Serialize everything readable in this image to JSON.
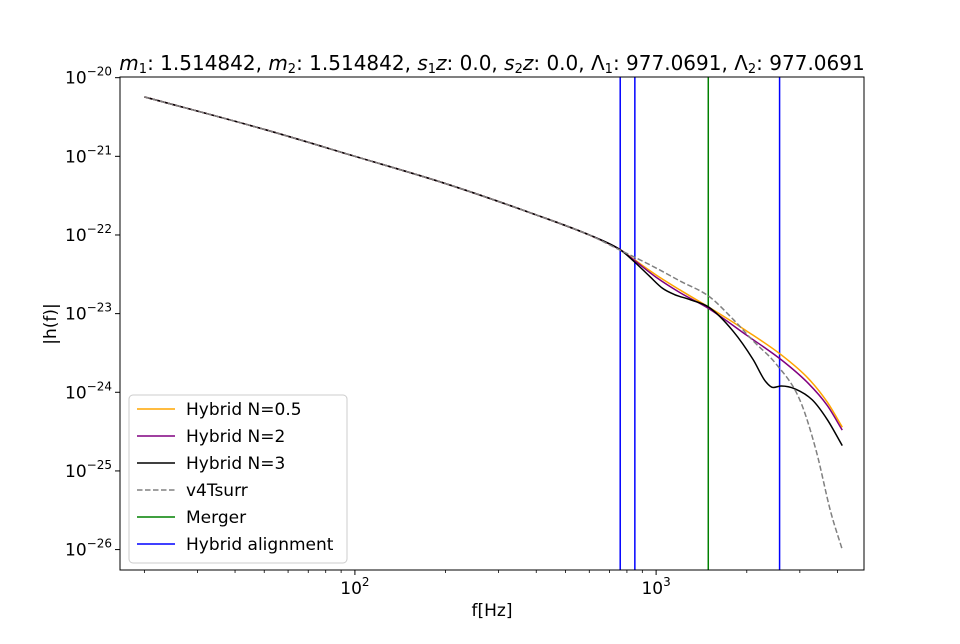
{
  "chart_data": {
    "type": "line",
    "title": "m1: 1.514842, m2: 1.514842, s1z: 0.0, s2z: 0.0, Λ1: 977.0691, Λ2: 977.0691",
    "title_parts": [
      {
        "t": "m",
        "style": "italic"
      },
      {
        "t": "1",
        "style": "sub"
      },
      {
        "t": ": 1.514842, "
      },
      {
        "t": "m",
        "style": "italic"
      },
      {
        "t": "2",
        "style": "sub"
      },
      {
        "t": ": 1.514842, "
      },
      {
        "t": "s",
        "style": "italic"
      },
      {
        "t": "1",
        "style": "sub"
      },
      {
        "t": "z",
        "style": "italic"
      },
      {
        "t": ": 0.0, "
      },
      {
        "t": "s",
        "style": "italic"
      },
      {
        "t": "2",
        "style": "sub"
      },
      {
        "t": "z",
        "style": "italic"
      },
      {
        "t": ": 0.0, "
      },
      {
        "t": "Λ"
      },
      {
        "t": "1",
        "style": "sub"
      },
      {
        "t": ": 977.0691, "
      },
      {
        "t": "Λ"
      },
      {
        "t": "2",
        "style": "sub"
      },
      {
        "t": ": 977.0691"
      }
    ],
    "xlabel": "f[Hz]",
    "ylabel": "|h(f)|",
    "xscale": "log",
    "yscale": "log",
    "xlim": [
      16.6,
      4900
    ],
    "ylim": [
      5.5e-27,
      1.02e-20
    ],
    "x_major_ticks": [
      {
        "value": 100,
        "mantissa": "10",
        "exp": "2"
      },
      {
        "value": 1000,
        "mantissa": "10",
        "exp": "3"
      }
    ],
    "y_major_ticks": [
      {
        "value": 1e-26,
        "mantissa": "10",
        "exp": "−26"
      },
      {
        "value": 1e-25,
        "mantissa": "10",
        "exp": "−25"
      },
      {
        "value": 1e-24,
        "mantissa": "10",
        "exp": "−24"
      },
      {
        "value": 1e-23,
        "mantissa": "10",
        "exp": "−23"
      },
      {
        "value": 1e-22,
        "mantissa": "10",
        "exp": "−22"
      },
      {
        "value": 1e-21,
        "mantissa": "10",
        "exp": "−21"
      },
      {
        "value": 1e-20,
        "mantissa": "10",
        "exp": "−20"
      }
    ],
    "grid": false,
    "legend_position": "lower-left",
    "series": [
      {
        "name": "Hybrid N=0.5",
        "color": "#ffa500",
        "dash": "solid",
        "points": [
          [
            20,
            5.7e-21
          ],
          [
            50,
            2.2e-21
          ],
          [
            100,
            1e-21
          ],
          [
            200,
            4.5e-22
          ],
          [
            400,
            1.8e-22
          ],
          [
            600,
            1e-22
          ],
          [
            760,
            6.5e-23
          ],
          [
            850,
            4.8e-23
          ],
          [
            1000,
            3.1e-23
          ],
          [
            1200,
            2e-23
          ],
          [
            1500,
            1.2e-23
          ],
          [
            2000,
            6e-24
          ],
          [
            2600,
            3e-24
          ],
          [
            3200,
            1.5e-24
          ],
          [
            3700,
            7.5e-25
          ],
          [
            4150,
            3.6e-25
          ]
        ]
      },
      {
        "name": "Hybrid N=2",
        "color": "#800080",
        "dash": "solid",
        "points": [
          [
            20,
            5.7e-21
          ],
          [
            50,
            2.2e-21
          ],
          [
            100,
            1e-21
          ],
          [
            200,
            4.5e-22
          ],
          [
            400,
            1.8e-22
          ],
          [
            600,
            1e-22
          ],
          [
            760,
            6.5e-23
          ],
          [
            850,
            4.7e-23
          ],
          [
            1000,
            2.9e-23
          ],
          [
            1200,
            1.85e-23
          ],
          [
            1500,
            1.15e-23
          ],
          [
            2000,
            5.3e-24
          ],
          [
            2600,
            2.6e-24
          ],
          [
            3200,
            1.3e-24
          ],
          [
            3700,
            6.8e-25
          ],
          [
            4150,
            3.3e-25
          ]
        ]
      },
      {
        "name": "Hybrid N=3",
        "color": "#000000",
        "dash": "solid",
        "points": [
          [
            20,
            5.7e-21
          ],
          [
            50,
            2.2e-21
          ],
          [
            100,
            1e-21
          ],
          [
            200,
            4.5e-22
          ],
          [
            400,
            1.8e-22
          ],
          [
            600,
            1e-22
          ],
          [
            760,
            6.5e-23
          ],
          [
            850,
            4.5e-23
          ],
          [
            950,
            3e-23
          ],
          [
            1050,
            2.1e-23
          ],
          [
            1150,
            1.75e-23
          ],
          [
            1300,
            1.5e-23
          ],
          [
            1500,
            1.2e-23
          ],
          [
            1800,
            6e-24
          ],
          [
            2100,
            2.6e-24
          ],
          [
            2300,
            1.4e-24
          ],
          [
            2450,
            1.15e-24
          ],
          [
            2600,
            1.2e-24
          ],
          [
            2900,
            1.1e-24
          ],
          [
            3300,
            8e-25
          ],
          [
            3700,
            4.5e-25
          ],
          [
            4150,
            2.1e-25
          ]
        ]
      },
      {
        "name": "v4Tsurr",
        "color": "#808080",
        "dash": "dashed",
        "points": [
          [
            20,
            5.7e-21
          ],
          [
            50,
            2.2e-21
          ],
          [
            100,
            1e-21
          ],
          [
            200,
            4.5e-22
          ],
          [
            400,
            1.8e-22
          ],
          [
            600,
            1e-22
          ],
          [
            760,
            6.4e-23
          ],
          [
            850,
            5.2e-23
          ],
          [
            1000,
            3.8e-23
          ],
          [
            1200,
            2.6e-23
          ],
          [
            1500,
            1.65e-23
          ],
          [
            1800,
            8.5e-24
          ],
          [
            2100,
            4.5e-24
          ],
          [
            2500,
            2.3e-24
          ],
          [
            3000,
            8e-25
          ],
          [
            3400,
            1.8e-25
          ],
          [
            3800,
            3e-26
          ],
          [
            4150,
            1e-26
          ]
        ]
      }
    ],
    "vlines": [
      {
        "name": "Merger",
        "color": "#008000",
        "x": [
          1490
        ]
      },
      {
        "name": "Hybrid alignment",
        "color": "#0000ff",
        "x": [
          760,
          850,
          2570
        ]
      }
    ]
  }
}
